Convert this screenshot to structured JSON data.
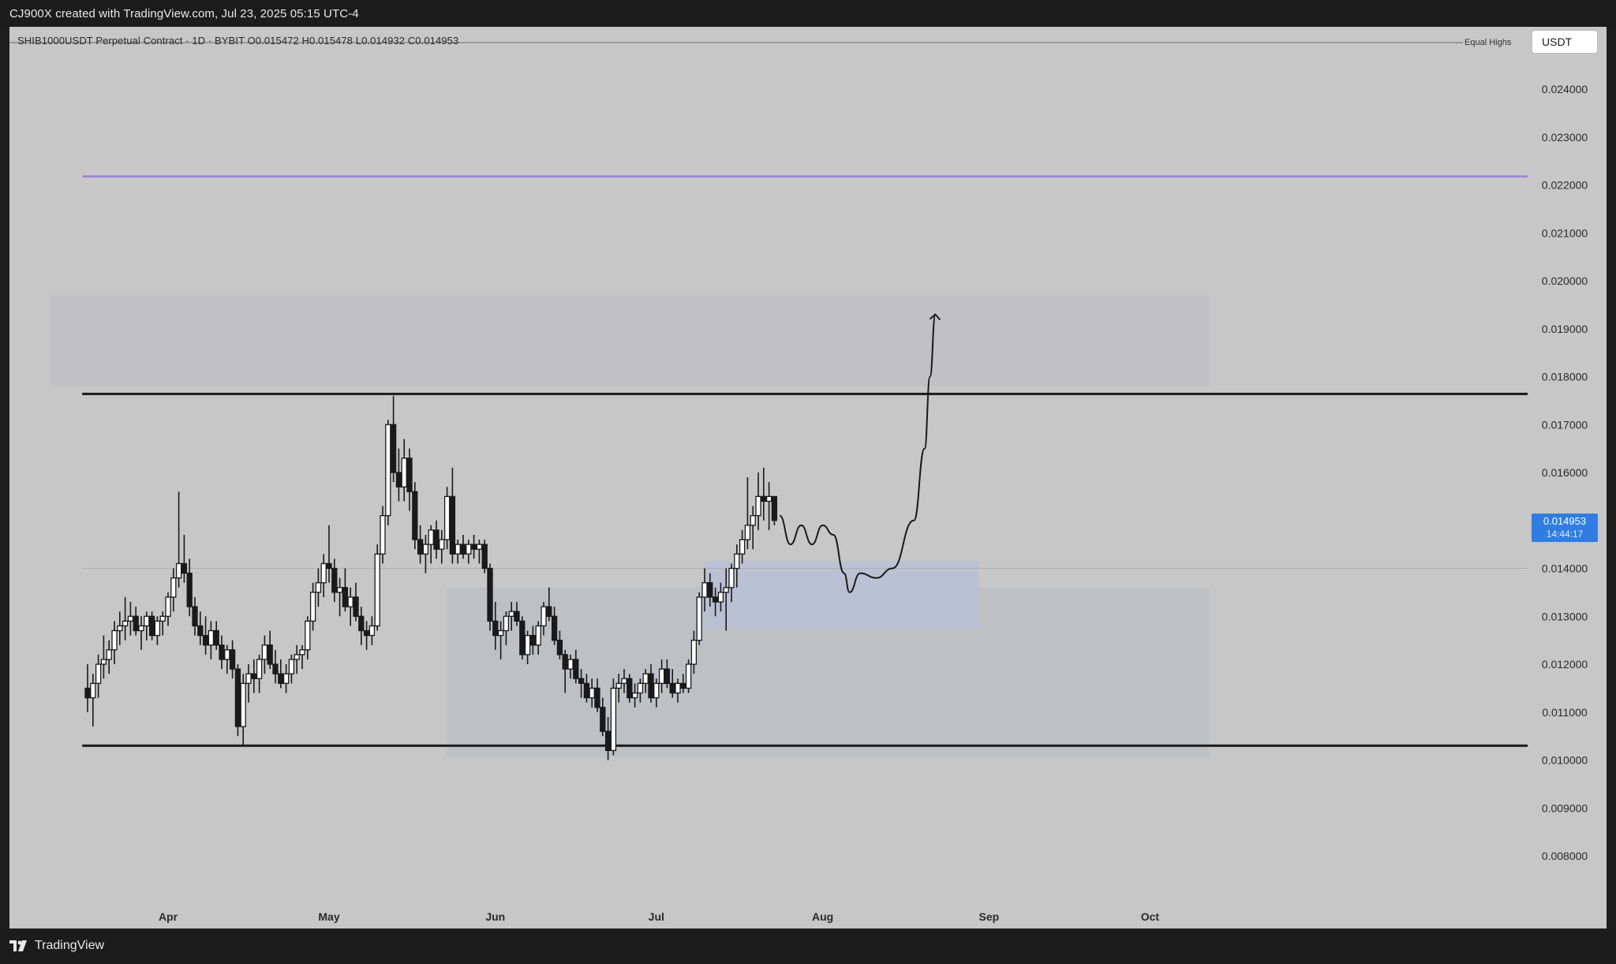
{
  "header": {
    "credit": "CJ900X created with TradingView.com, Jul 23, 2025 05:15 UTC-4"
  },
  "footer": {
    "brand": "TradingView"
  },
  "legend": {
    "symbol_line": "SHIB1000USDT Perpetual Contract · 1D · BYBIT  O0.015472  H0.015478  L0.014932  C0.014953"
  },
  "currency": "USDT",
  "equal_highs_label": "Equal Highs",
  "last_price": {
    "value": "0.014953",
    "countdown": "14:44:17"
  },
  "colors": {
    "chart_bg": "#c7c7c7",
    "candle": "#1a1a1a",
    "accent": "#2f7de1",
    "target_line": "#9d80d8",
    "demand_zone": "#b8bfd6",
    "supply_zone": "#cbcbcb"
  },
  "chart_data": {
    "type": "candlestick",
    "title": "SHIB1000USDT Perpetual Contract",
    "timeframe": "1D",
    "exchange": "BYBIT",
    "ylim": [
      0.0072,
      0.025
    ],
    "y_ticks": [
      "0.024000",
      "0.023000",
      "0.022000",
      "0.021000",
      "0.020000",
      "0.019000",
      "0.018000",
      "0.017000",
      "0.016000",
      "0.014000",
      "0.013000",
      "0.012000",
      "0.011000",
      "0.010000",
      "0.009000",
      "0.008000"
    ],
    "x_ticks": [
      {
        "label": "Apr",
        "day": 0
      },
      {
        "label": "May",
        "day": 30
      },
      {
        "label": "Jun",
        "day": 61
      },
      {
        "label": "Jul",
        "day": 91
      },
      {
        "label": "Aug",
        "day": 122
      },
      {
        "label": "Sep",
        "day": 153
      },
      {
        "label": "Oct",
        "day": 183
      }
    ],
    "x_day_range": [
      -22,
      195
    ],
    "candles": [
      [
        0.0115,
        0.012,
        0.011,
        0.0113
      ],
      [
        0.0113,
        0.0118,
        0.0107,
        0.0116
      ],
      [
        0.0116,
        0.0122,
        0.0113,
        0.012
      ],
      [
        0.012,
        0.0126,
        0.0117,
        0.0121
      ],
      [
        0.0121,
        0.0125,
        0.0118,
        0.0123
      ],
      [
        0.0123,
        0.0129,
        0.012,
        0.0127
      ],
      [
        0.0127,
        0.0131,
        0.0124,
        0.0128
      ],
      [
        0.0128,
        0.0134,
        0.0125,
        0.0129
      ],
      [
        0.0129,
        0.0133,
        0.0126,
        0.013
      ],
      [
        0.013,
        0.0132,
        0.0126,
        0.0127
      ],
      [
        0.0127,
        0.013,
        0.0123,
        0.0128
      ],
      [
        0.0128,
        0.0131,
        0.0125,
        0.013
      ],
      [
        0.013,
        0.0131,
        0.0125,
        0.0126
      ],
      [
        0.0126,
        0.013,
        0.0124,
        0.0129
      ],
      [
        0.0129,
        0.0131,
        0.0126,
        0.013
      ],
      [
        0.013,
        0.0135,
        0.0128,
        0.0134
      ],
      [
        0.0134,
        0.014,
        0.0131,
        0.0138
      ],
      [
        0.0138,
        0.0156,
        0.0136,
        0.0141
      ],
      [
        0.0141,
        0.0147,
        0.0137,
        0.0139
      ],
      [
        0.0139,
        0.0142,
        0.013,
        0.0132
      ],
      [
        0.0132,
        0.0134,
        0.0126,
        0.0128
      ],
      [
        0.0128,
        0.0131,
        0.0124,
        0.0126
      ],
      [
        0.0126,
        0.013,
        0.0122,
        0.0124
      ],
      [
        0.0124,
        0.0129,
        0.0121,
        0.0127
      ],
      [
        0.0127,
        0.0129,
        0.0123,
        0.0124
      ],
      [
        0.0124,
        0.0126,
        0.0119,
        0.0121
      ],
      [
        0.0121,
        0.0124,
        0.0118,
        0.0123
      ],
      [
        0.0123,
        0.0125,
        0.0117,
        0.0119
      ],
      [
        0.0119,
        0.012,
        0.0105,
        0.0107
      ],
      [
        0.0107,
        0.0118,
        0.0103,
        0.0116
      ],
      [
        0.0116,
        0.012,
        0.0112,
        0.0118
      ],
      [
        0.0118,
        0.0121,
        0.0114,
        0.0117
      ],
      [
        0.0117,
        0.0122,
        0.0114,
        0.0121
      ],
      [
        0.0121,
        0.0126,
        0.0118,
        0.0124
      ],
      [
        0.0124,
        0.0127,
        0.0119,
        0.012
      ],
      [
        0.012,
        0.0123,
        0.0116,
        0.0118
      ],
      [
        0.0118,
        0.0121,
        0.0115,
        0.0116
      ],
      [
        0.0116,
        0.012,
        0.0114,
        0.0118
      ],
      [
        0.0118,
        0.0122,
        0.0116,
        0.0121
      ],
      [
        0.0121,
        0.0124,
        0.0118,
        0.0122
      ],
      [
        0.0122,
        0.0124,
        0.0119,
        0.0123
      ],
      [
        0.0123,
        0.013,
        0.0121,
        0.0129
      ],
      [
        0.0129,
        0.0137,
        0.0127,
        0.0135
      ],
      [
        0.0135,
        0.014,
        0.0132,
        0.0137
      ],
      [
        0.0137,
        0.0143,
        0.0134,
        0.0141
      ],
      [
        0.0141,
        0.0149,
        0.0137,
        0.014
      ],
      [
        0.014,
        0.0142,
        0.0133,
        0.0135
      ],
      [
        0.0135,
        0.0138,
        0.013,
        0.0136
      ],
      [
        0.0136,
        0.014,
        0.0131,
        0.0132
      ],
      [
        0.0132,
        0.0136,
        0.0128,
        0.0134
      ],
      [
        0.0134,
        0.0137,
        0.0129,
        0.013
      ],
      [
        0.013,
        0.0132,
        0.0124,
        0.0127
      ],
      [
        0.0127,
        0.0129,
        0.0123,
        0.0126
      ],
      [
        0.0126,
        0.013,
        0.0124,
        0.0128
      ],
      [
        0.0128,
        0.0145,
        0.0127,
        0.0143
      ],
      [
        0.0143,
        0.0153,
        0.0141,
        0.0151
      ],
      [
        0.0151,
        0.0171,
        0.0149,
        0.017
      ],
      [
        0.017,
        0.0176,
        0.0158,
        0.016
      ],
      [
        0.016,
        0.0165,
        0.0154,
        0.0157
      ],
      [
        0.0157,
        0.0167,
        0.0154,
        0.0163
      ],
      [
        0.0163,
        0.0165,
        0.0152,
        0.0156
      ],
      [
        0.0156,
        0.0158,
        0.0144,
        0.0146
      ],
      [
        0.0146,
        0.0149,
        0.0141,
        0.0143
      ],
      [
        0.0143,
        0.0147,
        0.0139,
        0.0145
      ],
      [
        0.0145,
        0.0149,
        0.0141,
        0.0148
      ],
      [
        0.0148,
        0.015,
        0.0142,
        0.0144
      ],
      [
        0.0144,
        0.0148,
        0.0141,
        0.0146
      ],
      [
        0.0146,
        0.0157,
        0.0144,
        0.0155
      ],
      [
        0.0155,
        0.0161,
        0.0141,
        0.0143
      ],
      [
        0.0143,
        0.0146,
        0.0141,
        0.0145
      ],
      [
        0.0145,
        0.0147,
        0.0142,
        0.0143
      ],
      [
        0.0143,
        0.0146,
        0.0141,
        0.0145
      ],
      [
        0.0145,
        0.0147,
        0.0142,
        0.0144
      ],
      [
        0.0144,
        0.0146,
        0.0141,
        0.0145
      ],
      [
        0.0145,
        0.0146,
        0.0139,
        0.014
      ],
      [
        0.014,
        0.0141,
        0.0127,
        0.0129
      ],
      [
        0.0129,
        0.0133,
        0.0123,
        0.0126
      ],
      [
        0.0126,
        0.0129,
        0.0121,
        0.0127
      ],
      [
        0.0127,
        0.0131,
        0.0124,
        0.013
      ],
      [
        0.013,
        0.0133,
        0.0127,
        0.0131
      ],
      [
        0.0131,
        0.0133,
        0.0128,
        0.0129
      ],
      [
        0.0129,
        0.013,
        0.0121,
        0.0122
      ],
      [
        0.0122,
        0.0127,
        0.012,
        0.0126
      ],
      [
        0.0126,
        0.0128,
        0.0122,
        0.0124
      ],
      [
        0.0124,
        0.0129,
        0.0122,
        0.0128
      ],
      [
        0.0128,
        0.0133,
        0.0126,
        0.0132
      ],
      [
        0.0132,
        0.0136,
        0.0129,
        0.013
      ],
      [
        0.013,
        0.0132,
        0.0124,
        0.0125
      ],
      [
        0.0125,
        0.0127,
        0.0121,
        0.0122
      ],
      [
        0.0122,
        0.0123,
        0.0114,
        0.0119
      ],
      [
        0.0119,
        0.0122,
        0.0117,
        0.0121
      ],
      [
        0.0121,
        0.0123,
        0.0116,
        0.0117
      ],
      [
        0.0117,
        0.0119,
        0.0113,
        0.0116
      ],
      [
        0.0116,
        0.0118,
        0.0112,
        0.0113
      ],
      [
        0.0113,
        0.0117,
        0.0111,
        0.0115
      ],
      [
        0.0115,
        0.0117,
        0.011,
        0.0111
      ],
      [
        0.0111,
        0.0113,
        0.0105,
        0.0106
      ],
      [
        0.0106,
        0.0109,
        0.01,
        0.0102
      ],
      [
        0.0102,
        0.0117,
        0.0101,
        0.0115
      ],
      [
        0.0115,
        0.0118,
        0.0112,
        0.0116
      ],
      [
        0.0116,
        0.0119,
        0.0114,
        0.0117
      ],
      [
        0.0117,
        0.0118,
        0.0112,
        0.0113
      ],
      [
        0.0113,
        0.0116,
        0.0111,
        0.0114
      ],
      [
        0.0114,
        0.0117,
        0.0112,
        0.0116
      ],
      [
        0.0116,
        0.0119,
        0.0114,
        0.0118
      ],
      [
        0.0118,
        0.012,
        0.0112,
        0.0113
      ],
      [
        0.0113,
        0.0117,
        0.0111,
        0.0116
      ],
      [
        0.0116,
        0.0121,
        0.0114,
        0.0119
      ],
      [
        0.0119,
        0.0121,
        0.0115,
        0.0116
      ],
      [
        0.0116,
        0.0119,
        0.0113,
        0.0114
      ],
      [
        0.0114,
        0.0117,
        0.0112,
        0.0116
      ],
      [
        0.0116,
        0.0118,
        0.0114,
        0.0115
      ],
      [
        0.0115,
        0.0121,
        0.0114,
        0.012
      ],
      [
        0.012,
        0.0127,
        0.0118,
        0.0125
      ],
      [
        0.0125,
        0.0135,
        0.0124,
        0.0134
      ],
      [
        0.0134,
        0.014,
        0.0131,
        0.0137
      ],
      [
        0.0137,
        0.0139,
        0.0132,
        0.0134
      ],
      [
        0.0134,
        0.0136,
        0.013,
        0.0133
      ],
      [
        0.0133,
        0.0137,
        0.0131,
        0.0135
      ],
      [
        0.0135,
        0.014,
        0.0127,
        0.0136
      ],
      [
        0.0136,
        0.0141,
        0.0133,
        0.014
      ],
      [
        0.014,
        0.0145,
        0.0136,
        0.0143
      ],
      [
        0.0143,
        0.0148,
        0.0141,
        0.0146
      ],
      [
        0.0146,
        0.0159,
        0.0144,
        0.0149
      ],
      [
        0.0149,
        0.0153,
        0.0144,
        0.0151
      ],
      [
        0.0151,
        0.016,
        0.0148,
        0.0155
      ],
      [
        0.0155,
        0.0161,
        0.015,
        0.0154
      ],
      [
        0.0154,
        0.0158,
        0.0148,
        0.0155
      ],
      [
        0.0155,
        0.0155,
        0.0149,
        0.015
      ]
    ],
    "last_candle_day": 113,
    "candle_day_spacing": 1,
    "horizontal_levels": [
      {
        "price": 0.01764,
        "from_day": -16,
        "style": "thick-black"
      },
      {
        "price": 0.0103,
        "from_day": -16,
        "style": "thick-black"
      },
      {
        "price": 0.02218,
        "from_day": -16,
        "style": "purple"
      },
      {
        "price": 0.014,
        "from_day": -16,
        "style": "thin-gray"
      }
    ],
    "zones": [
      {
        "kind": "supply",
        "from_day": -22,
        "to_day": 194,
        "top": 0.0197,
        "bottom": 0.0178
      },
      {
        "kind": "range",
        "from_day": 52,
        "to_day": 194,
        "top": 0.0136,
        "bottom": 0.01005
      },
      {
        "kind": "demand",
        "from_day": 100,
        "to_day": 151,
        "top": 0.01415,
        "bottom": 0.01275
      }
    ],
    "projection_path": [
      [
        114,
        0.0151
      ],
      [
        116,
        0.0145
      ],
      [
        118,
        0.0149
      ],
      [
        120,
        0.0145
      ],
      [
        122,
        0.0149
      ],
      [
        124,
        0.0147
      ],
      [
        126,
        0.0139
      ],
      [
        127,
        0.0135
      ],
      [
        129,
        0.0139
      ],
      [
        132,
        0.0138
      ],
      [
        135,
        0.014
      ],
      [
        139,
        0.015
      ],
      [
        141,
        0.0165
      ],
      [
        142,
        0.018
      ],
      [
        143,
        0.0193
      ]
    ]
  }
}
